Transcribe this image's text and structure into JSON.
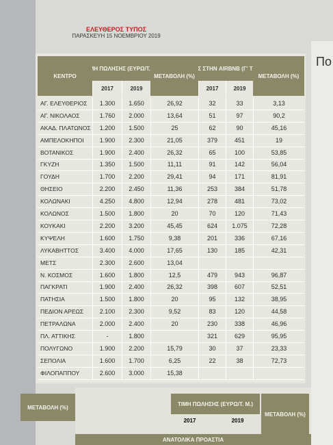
{
  "header": {
    "paper": "ΕΛΕΥΘΕΡΟΣ ΤΥΠΟΣ",
    "date": "ΠΑΡΑΣΚΕΥΗ 15 ΝΟΕΜΒΡΙΟΥ 2019"
  },
  "table": {
    "columns": {
      "area": "ΚΕΝΤΡΟ",
      "price": "ΤΙΜΗ ΠΩΛΗΣΗΣ (ΕΥΡΩ/Τ.Μ.)",
      "change": "ΜΕΤΑΒΟΛΗ (%)",
      "airbnb": "ΑΓΓΕΛΙΕΣ ΣΤΗΝ AIRBNB (Γ' ΤΡΙΜΗΝΟ)",
      "change2": "ΜΕΤΑΒΟΛΗ (%)",
      "years": [
        "2017",
        "2019",
        "2017",
        "2019"
      ]
    },
    "rows": [
      [
        "ΑΓ. ΕΛΕΥΘΕΡΙΟΣ",
        "1.300",
        "1.650",
        "26,92",
        "32",
        "33",
        "3,13"
      ],
      [
        "ΑΓ. ΝΙΚΟΛΑΟΣ",
        "1.760",
        "2.000",
        "13,64",
        "51",
        "97",
        "90,2"
      ],
      [
        "ΑΚΑΔ. ΠΛΑΤΩΝΟΣ",
        "1.200",
        "1.500",
        "25",
        "62",
        "90",
        "45,16"
      ],
      [
        "ΑΜΠΕΛΟΚΗΠΟΙ",
        "1.900",
        "2.300",
        "21,05",
        "379",
        "451",
        "19"
      ],
      [
        "ΒΟΤΑΝΙΚΟΣ",
        "1.900",
        "2.400",
        "26,32",
        "65",
        "100",
        "53,85"
      ],
      [
        "ΓΚΥΖΗ",
        "1.350",
        "1.500",
        "11,11",
        "91",
        "142",
        "56,04"
      ],
      [
        "ΓΟΥΔΗ",
        "1.700",
        "2.200",
        "29,41",
        "94",
        "171",
        "81,91"
      ],
      [
        "ΘΗΣΕΙΟ",
        "2.200",
        "2.450",
        "11,36",
        "253",
        "384",
        "51,78"
      ],
      [
        "ΚΟΛΩΝΑΚΙ",
        "4.250",
        "4.800",
        "12,94",
        "278",
        "481",
        "73,02"
      ],
      [
        "ΚΟΛΩΝΟΣ",
        "1.500",
        "1.800",
        "20",
        "70",
        "120",
        "71,43"
      ],
      [
        "ΚΟΥΚΑΚΙ",
        "2.200",
        "3.200",
        "45,45",
        "624",
        "1.075",
        "72,28"
      ],
      [
        "ΚΥΨΕΛΗ",
        "1.600",
        "1.750",
        "9,38",
        "201",
        "336",
        "67,16"
      ],
      [
        "ΛΥΚΑΒΗΤΤΟΣ",
        "3.400",
        "4.000",
        "17,65",
        "130",
        "185",
        "42,31"
      ],
      [
        "ΜΕΤΣ",
        "2.300",
        "2.600",
        "13,04",
        null,
        null,
        null
      ],
      [
        "Ν. ΚΟΣΜΟΣ",
        "1.600",
        "1.800",
        "12,5",
        "479",
        "943",
        "96,87"
      ],
      [
        "ΠΑΓΚΡΑΤΙ",
        "1.900",
        "2.400",
        "26,32",
        "398",
        "607",
        "52,51"
      ],
      [
        "ΠΑΤΗΣΙΑ",
        "1.500",
        "1.800",
        "20",
        "95",
        "132",
        "38,95"
      ],
      [
        "ΠΕΔΙΟΝ ΑΡΕΩΣ",
        "2.100",
        "2.300",
        "9,52",
        "83",
        "120",
        "44,58"
      ],
      [
        "ΠΕΤΡΑΛΩΝΑ",
        "2.000",
        "2.400",
        "20",
        "230",
        "338",
        "46,96"
      ],
      [
        "ΠΛ. ΑΤΤΙΚΗΣ",
        "-",
        "1.800",
        null,
        "321",
        "629",
        "95,95"
      ],
      [
        "ΠΟΛΥΓΩΝΟ",
        "1.900",
        "2.200",
        "15,79",
        "30",
        "37",
        "23,33"
      ],
      [
        "ΣΕΠΟΛΙΑ",
        "1.600",
        "1.700",
        "6,25",
        "22",
        "38",
        "72,73"
      ],
      [
        "ΦΙΛΟΠΑΠΠΟΥ",
        "2.600",
        "3.000",
        "15,38",
        null,
        null,
        null
      ]
    ]
  },
  "next_table": {
    "change_left": "ΜΕΤΑΒΟΛΗ (%)",
    "price": "ΤΙΜΗ ΠΩΛΗΣΗΣ (ΕΥΡΩ/Τ. Μ.)",
    "years": [
      "2017",
      "2019"
    ],
    "change": "ΜΕΤΑΒΟΛΗ (%)",
    "section": "ΑΝΑΤΟΛΙΚΑ ΠΡΟΑΣΤΙΑ"
  },
  "side": {
    "heading": "Πο"
  }
}
